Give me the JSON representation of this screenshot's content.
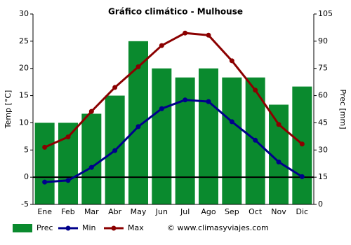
{
  "chart_data": {
    "type": "bar-line",
    "title": "Gráfico climático - Mulhouse",
    "y_label": "Temp [°C]",
    "y2_label": "Prec [mm]",
    "categories": [
      "Ene",
      "Feb",
      "Mar",
      "Abr",
      "May",
      "Jun",
      "Jul",
      "Ago",
      "Sep",
      "Oct",
      "Nov",
      "Dic"
    ],
    "series": [
      {
        "name": "Prec",
        "type": "bar",
        "axis": "y2",
        "color": "#0a8a2e",
        "values": [
          45,
          45,
          50,
          60,
          90,
          75,
          70,
          75,
          70,
          70,
          55,
          65
        ]
      },
      {
        "name": "Min",
        "type": "line",
        "color": "#00008b",
        "values": [
          -0.9,
          -0.6,
          1.8,
          4.9,
          9.3,
          12.6,
          14.2,
          13.9,
          10.2,
          6.8,
          2.8,
          0.1
        ]
      },
      {
        "name": "Max",
        "type": "line",
        "color": "#8b0000",
        "values": [
          5.5,
          7.4,
          12.1,
          16.5,
          20.3,
          24.2,
          26.5,
          26.1,
          21.4,
          16,
          9.7,
          6.1
        ]
      }
    ],
    "ylim": [
      -5,
      30
    ],
    "yticks": [
      -5,
      0,
      5,
      10,
      15,
      20,
      25,
      30
    ],
    "y2lim": [
      0,
      105
    ],
    "y2ticks": [
      0,
      15,
      30,
      45,
      60,
      75,
      90,
      105
    ],
    "grid": false,
    "source": "© www.climasyviajes.com"
  }
}
